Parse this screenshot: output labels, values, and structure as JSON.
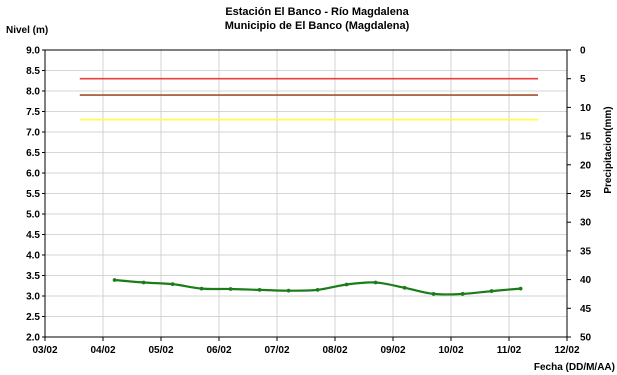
{
  "chart_data": {
    "type": "line",
    "title": "Estación El Banco - Río Magdalena",
    "subtitle": "Municipio de El Banco (Magdalena)",
    "ylabel": "Nivel (m)",
    "y2label": "Precipitacion(mm)",
    "xlabel": "Fecha (DD/M/AA)",
    "ylim": [
      2.0,
      9.0
    ],
    "y_ticks": [
      "2.0",
      "2.5",
      "3.0",
      "3.5",
      "4.0",
      "4.5",
      "5.0",
      "5.5",
      "6.0",
      "6.5",
      "7.0",
      "7.5",
      "8.0",
      "8.5",
      "9.0"
    ],
    "y2lim": [
      0,
      50
    ],
    "y2_inverted": true,
    "y2_ticks": [
      "0",
      "5",
      "10",
      "15",
      "20",
      "25",
      "30",
      "35",
      "40",
      "45",
      "50"
    ],
    "x_ticks": [
      "03/02",
      "04/02",
      "05/02",
      "06/02",
      "07/02",
      "08/02",
      "09/02",
      "10/02",
      "11/02",
      "12/02"
    ],
    "x_tick_values": [
      3,
      4,
      5,
      6,
      7,
      8,
      9,
      10,
      11,
      12
    ],
    "grid": true,
    "reference_lines": [
      {
        "value": 8.3,
        "color": "#e8413c"
      },
      {
        "value": 7.9,
        "color": "#a0522d"
      },
      {
        "value": 7.3,
        "color": "#ffff40"
      }
    ],
    "series": [
      {
        "color": "#1a7d1a",
        "x": [
          4.2,
          4.7,
          5.2,
          5.7,
          6.2,
          6.7,
          7.2,
          7.7,
          8.2,
          8.7,
          9.2,
          9.7,
          10.2,
          10.7,
          11.2
        ],
        "values": [
          3.39,
          3.33,
          3.29,
          3.18,
          3.17,
          3.15,
          3.13,
          3.15,
          3.28,
          3.33,
          3.2,
          3.05,
          3.05,
          3.12,
          3.18
        ]
      }
    ]
  }
}
